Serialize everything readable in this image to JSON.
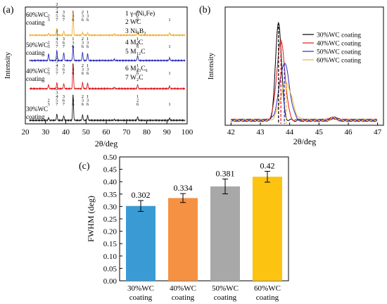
{
  "chart_data": [
    {
      "panel": "(a)",
      "type": "line",
      "xlabel": "2θ/deg",
      "ylabel": "Intensity",
      "xlim": [
        20,
        100
      ],
      "xticks": [
        "20",
        "30",
        "40",
        "50",
        "60",
        "70",
        "80",
        "90",
        "100"
      ],
      "legend": [
        "1 γ-(Ni,Fe)",
        "2 WC",
        "3 Ni₄B₃",
        "4 M₆C",
        "5 M₁₂C",
        "6 M₂₃C₆",
        "7 W₂C"
      ],
      "series": [
        {
          "name": "30%WC coating",
          "color": "#222222",
          "peaks": [
            [
              31.5,
              0.1
            ],
            [
              35.6,
              0.25
            ],
            [
              39.0,
              0.18
            ],
            [
              43.6,
              1.0
            ],
            [
              48.3,
              0.22
            ],
            [
              50.8,
              0.2
            ],
            [
              64.0,
              0.04
            ],
            [
              75.5,
              0.14
            ],
            [
              91.3,
              0.09
            ]
          ]
        },
        {
          "name": "40%WC coating",
          "color": "#e0191f",
          "peaks": [
            [
              31.5,
              0.16
            ],
            [
              35.6,
              0.24
            ],
            [
              39.0,
              0.2
            ],
            [
              43.6,
              1.0
            ],
            [
              48.3,
              0.25
            ],
            [
              50.8,
              0.22
            ],
            [
              64.0,
              0.05
            ],
            [
              75.5,
              0.16
            ],
            [
              91.3,
              0.1
            ]
          ]
        },
        {
          "name": "50%WC coating",
          "color": "#2b2fb8",
          "peaks": [
            [
              31.5,
              0.3
            ],
            [
              35.6,
              0.45
            ],
            [
              39.0,
              0.35
            ],
            [
              43.6,
              0.65
            ],
            [
              48.3,
              0.36
            ],
            [
              50.8,
              0.3
            ],
            [
              64.0,
              0.06
            ],
            [
              75.5,
              0.22
            ],
            [
              91.3,
              0.12
            ]
          ]
        },
        {
          "name": "60%WC coating",
          "color": "#f2b134",
          "peaks": [
            [
              31.5,
              0.08
            ],
            [
              35.6,
              0.28
            ],
            [
              39.0,
              0.18
            ],
            [
              43.6,
              1.0
            ],
            [
              48.3,
              0.12
            ],
            [
              50.8,
              0.1
            ],
            [
              64.0,
              0.05
            ],
            [
              75.5,
              0.18
            ],
            [
              91.3,
              0.1
            ]
          ]
        }
      ],
      "series_labels": [
        "30%WC coating",
        "40%WC coating",
        "50%WC coating",
        "60%WC coating"
      ],
      "peak_labels": [
        {
          "x": 31.5,
          "text": [
            "2",
            "3"
          ]
        },
        {
          "x": 35.6,
          "text": [
            "2",
            "3",
            "4",
            "5",
            "7"
          ]
        },
        {
          "x": 38.9,
          "text": [
            "3",
            "6",
            "7"
          ]
        },
        {
          "x": 43.6,
          "text": [
            "1",
            "3",
            "6"
          ]
        },
        {
          "x": 48.3,
          "text": [
            "2",
            "3",
            "6"
          ]
        },
        {
          "x": 50.8,
          "text": [
            "1",
            "3",
            "6"
          ]
        },
        {
          "x": 75.5,
          "text": [
            "1",
            "2",
            "6"
          ]
        },
        {
          "x": 91.3,
          "text": [
            "1"
          ]
        }
      ]
    },
    {
      "panel": "(b)",
      "type": "line",
      "xlabel": "2θ/deg",
      "ylabel": "Intensity",
      "xlim": [
        41.8,
        47.2
      ],
      "xticks": [
        "42",
        "43",
        "44",
        "45",
        "46",
        "47"
      ],
      "legend_position": "top-right",
      "series": [
        {
          "name": "30%WC coating",
          "color": "#000000",
          "center": 43.62,
          "height": 1.0,
          "width": 0.1
        },
        {
          "name": "40%WC coating",
          "color": "#e0191f",
          "center": 43.7,
          "height": 0.8,
          "width": 0.14
        },
        {
          "name": "50%WC coating",
          "color": "#2b2fb8",
          "center": 43.82,
          "height": 0.58,
          "width": 0.17
        },
        {
          "name": "60%WC coating",
          "color": "#f2b134",
          "center": 43.88,
          "height": 0.38,
          "width": 0.19
        }
      ]
    },
    {
      "panel": "(c)",
      "type": "bar",
      "title": "",
      "xlabel": "",
      "ylabel": "FWHM (deg)",
      "ylim": [
        0.0,
        0.5
      ],
      "yticks": [
        "0.00",
        "0.05",
        "0.10",
        "0.15",
        "0.20",
        "0.25",
        "0.30",
        "0.35",
        "0.40",
        "0.45",
        "0.50"
      ],
      "categories": [
        [
          "30%WC",
          "coating"
        ],
        [
          "40%WC",
          "coating"
        ],
        [
          "50%WC",
          "coating"
        ],
        [
          "60%WC",
          "coating"
        ]
      ],
      "values": [
        0.302,
        0.334,
        0.381,
        0.42
      ],
      "value_labels": [
        "0.302",
        "0.334",
        "0.381",
        "0.42"
      ],
      "errors": [
        0.022,
        0.018,
        0.03,
        0.022
      ],
      "colors": [
        "#3a9bd4",
        "#f59142",
        "#a8a8a8",
        "#fcc311"
      ]
    }
  ]
}
